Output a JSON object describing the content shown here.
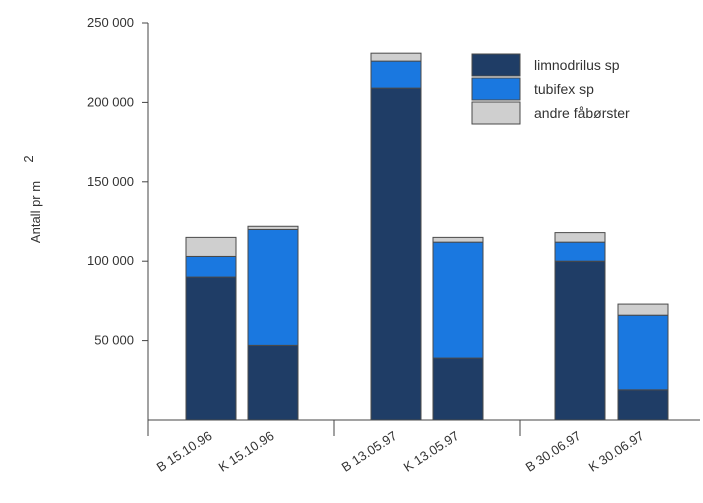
{
  "chart_data": {
    "type": "bar",
    "stacked": true,
    "ylabel": "Antall pr m",
    "ylabel_superscript": "2",
    "ylim": [
      0,
      250000
    ],
    "yticks": [
      50000,
      100000,
      150000,
      200000,
      250000
    ],
    "ytick_labels": [
      "50 000",
      "100 000",
      "150 000",
      "200 000",
      "250 000"
    ],
    "categories": [
      "B 15.10.96",
      "K 15.10.96",
      "B 13.05.97",
      "K 13.05.97",
      "B 30.06.97",
      "K 30.06.97"
    ],
    "series": [
      {
        "name": "limnodrilus sp",
        "color": "#1f3d66",
        "values": [
          90000,
          47000,
          209000,
          39000,
          100000,
          19000
        ]
      },
      {
        "name": "tubifex sp",
        "color": "#1a78e0",
        "values": [
          13000,
          73000,
          17000,
          73000,
          12000,
          47000
        ]
      },
      {
        "name": "andre fåbørster",
        "color": "#cfcfcf",
        "values": [
          12000,
          2000,
          5000,
          3000,
          6000,
          7000
        ]
      }
    ],
    "legend_position": "top-right",
    "grid": false
  }
}
